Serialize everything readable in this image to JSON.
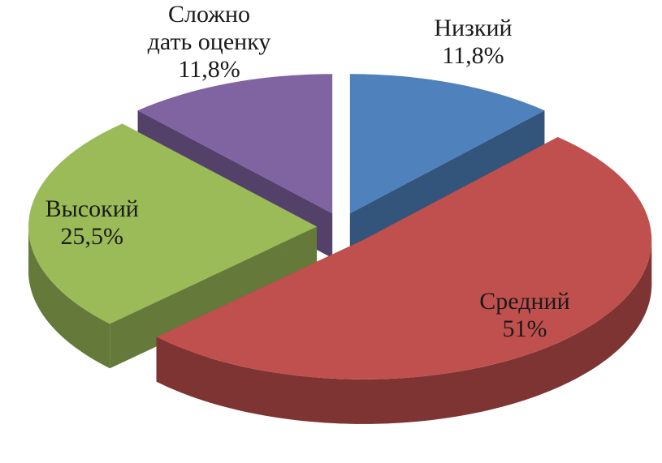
{
  "chart_data": {
    "type": "pie",
    "categories": [
      "Низкий",
      "Средний",
      "Высокий",
      "Сложно дать оценку"
    ],
    "values": [
      11.8,
      51,
      25.5,
      11.8
    ],
    "value_labels": [
      "11,8%",
      "51%",
      "25,5%",
      "11,8%"
    ],
    "colors": [
      "#4f81bd",
      "#c0504d",
      "#9bbb59",
      "#8064a2"
    ]
  }
}
